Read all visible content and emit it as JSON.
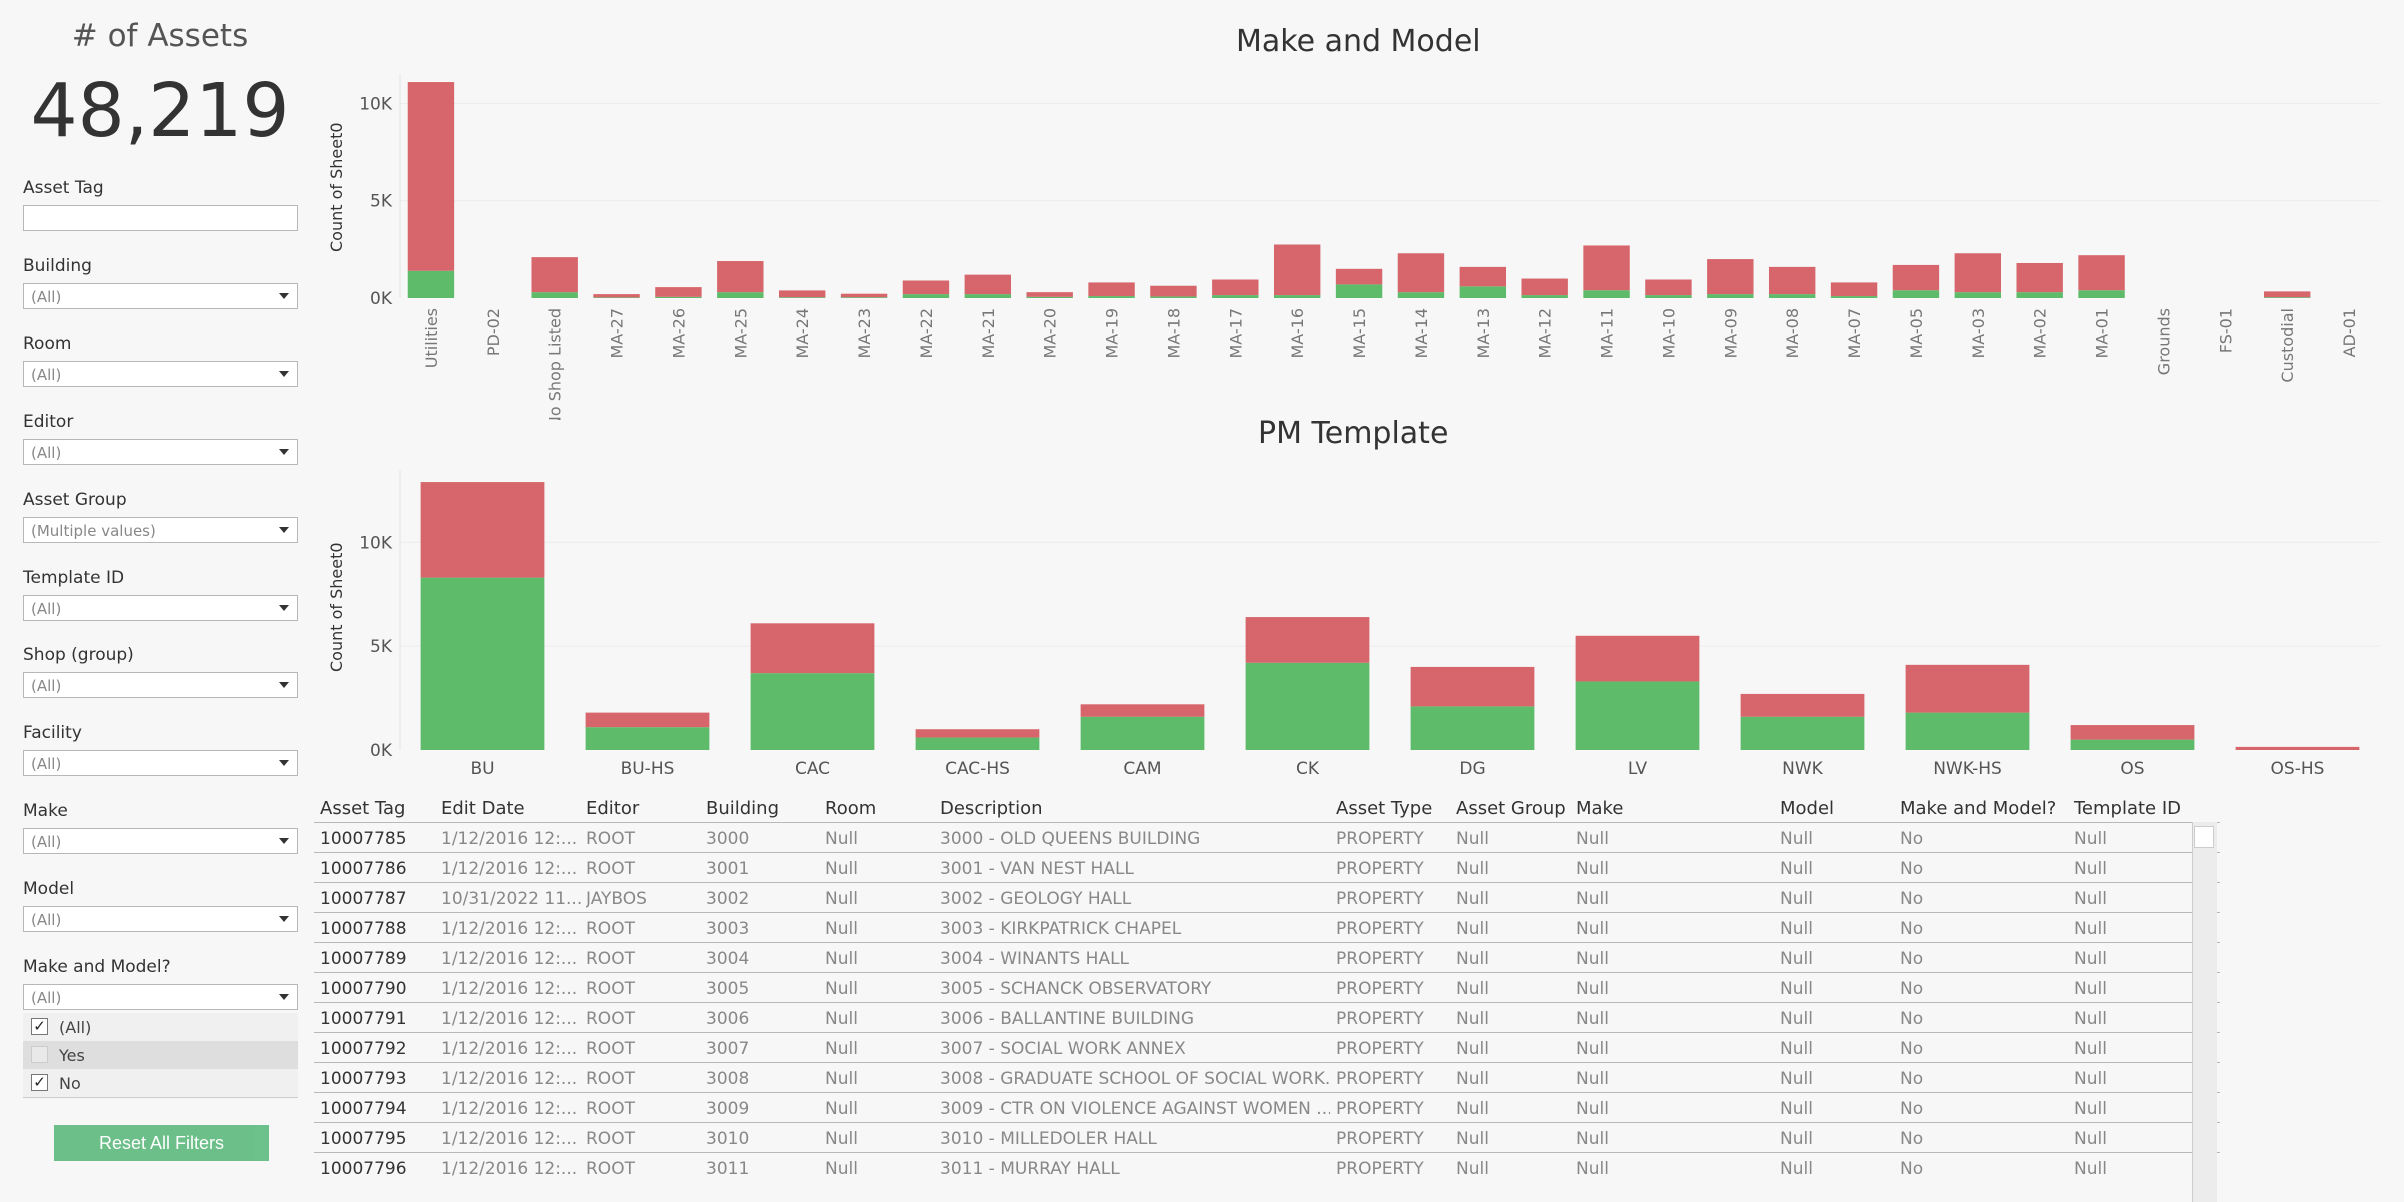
{
  "kpi": {
    "title": "# of Assets",
    "value": "48,219"
  },
  "filters": {
    "asset_tag": {
      "label": "Asset Tag",
      "value": ""
    },
    "building": {
      "label": "Building",
      "value": "(All)"
    },
    "room": {
      "label": "Room",
      "value": "(All)"
    },
    "editor": {
      "label": "Editor",
      "value": "(All)"
    },
    "asset_group": {
      "label": "Asset Group",
      "value": "(Multiple values)"
    },
    "template_id": {
      "label": "Template ID",
      "value": "(All)"
    },
    "shop_group": {
      "label": "Shop (group)",
      "value": "(All)"
    },
    "facility": {
      "label": "Facility",
      "value": "(All)"
    },
    "make": {
      "label": "Make",
      "value": "(All)"
    },
    "model": {
      "label": "Model",
      "value": "(All)"
    },
    "make_and_model": {
      "label": "Make and Model?",
      "value": "(All)",
      "options": [
        {
          "label": "(All)",
          "checked": true
        },
        {
          "label": "Yes",
          "checked": false
        },
        {
          "label": "No",
          "checked": true
        }
      ]
    }
  },
  "reset_label": "Reset All Filters",
  "colors": {
    "no": "#d6666b",
    "yes": "#5dbb6a"
  },
  "chart_data": [
    {
      "type": "bar",
      "title": "Make and Model",
      "ylabel": "Count of Sheet0",
      "ylim": [
        0,
        11000
      ],
      "yticks": [
        {
          "v": 0,
          "label": "0K"
        },
        {
          "v": 5000,
          "label": "5K"
        },
        {
          "v": 10000,
          "label": "10K"
        }
      ],
      "categories": [
        "Utilities",
        "PD-02",
        "No Shop Listed",
        "MA-27",
        "MA-26",
        "MA-25",
        "MA-24",
        "MA-23",
        "MA-22",
        "MA-21",
        "MA-20",
        "MA-19",
        "MA-18",
        "MA-17",
        "MA-16",
        "MA-15",
        "MA-14",
        "MA-13",
        "MA-12",
        "MA-11",
        "MA-10",
        "MA-09",
        "MA-08",
        "MA-07",
        "MA-05",
        "MA-03",
        "MA-02",
        "MA-01",
        "Grounds",
        "FS-01",
        "Custodial",
        "AD-01"
      ],
      "series": [
        {
          "name": "Yes",
          "values": [
            1400,
            0,
            300,
            30,
            60,
            300,
            40,
            40,
            200,
            200,
            60,
            100,
            80,
            150,
            150,
            700,
            300,
            600,
            150,
            400,
            150,
            200,
            200,
            100,
            400,
            300,
            300,
            400,
            0,
            0,
            40,
            0
          ]
        },
        {
          "name": "No",
          "values": [
            9700,
            0,
            1800,
            170,
            500,
            1600,
            350,
            180,
            700,
            1000,
            240,
            700,
            550,
            800,
            2600,
            800,
            2000,
            1000,
            850,
            2300,
            800,
            1800,
            1400,
            700,
            1300,
            2000,
            1500,
            1800,
            0,
            0,
            300,
            0
          ]
        }
      ]
    },
    {
      "type": "bar",
      "title": "PM Template",
      "ylabel": "Count of Sheet0",
      "ylim": [
        0,
        13000
      ],
      "yticks": [
        {
          "v": 0,
          "label": "0K"
        },
        {
          "v": 5000,
          "label": "5K"
        },
        {
          "v": 10000,
          "label": "10K"
        }
      ],
      "categories": [
        "BU",
        "BU-HS",
        "CAC",
        "CAC-HS",
        "CAM",
        "CK",
        "DG",
        "LV",
        "NWK",
        "NWK-HS",
        "OS",
        "OS-HS"
      ],
      "series": [
        {
          "name": "Yes",
          "values": [
            8300,
            1100,
            3700,
            600,
            1600,
            4200,
            2100,
            3300,
            1600,
            1800,
            500,
            0
          ]
        },
        {
          "name": "No",
          "values": [
            4600,
            700,
            2400,
            400,
            600,
            2200,
            1900,
            2200,
            1100,
            2300,
            700,
            150
          ]
        }
      ]
    }
  ],
  "table": {
    "columns": [
      "Asset Tag",
      "Edit Date",
      "Editor",
      "Building",
      "Room",
      "Description",
      "Asset Type",
      "Asset Group",
      "Make",
      "Model",
      "Make and Model?",
      "Template ID"
    ],
    "rows": [
      [
        "10007785",
        "1/12/2016 12:...",
        "ROOT",
        "3000",
        "Null",
        "3000 - OLD QUEENS BUILDING",
        "PROPERTY",
        "Null",
        "Null",
        "Null",
        "No",
        "Null"
      ],
      [
        "10007786",
        "1/12/2016 12:...",
        "ROOT",
        "3001",
        "Null",
        "3001 - VAN NEST HALL",
        "PROPERTY",
        "Null",
        "Null",
        "Null",
        "No",
        "Null"
      ],
      [
        "10007787",
        "10/31/2022 11...",
        "JAYBOS",
        "3002",
        "Null",
        "3002 - GEOLOGY HALL",
        "PROPERTY",
        "Null",
        "Null",
        "Null",
        "No",
        "Null"
      ],
      [
        "10007788",
        "1/12/2016 12:...",
        "ROOT",
        "3003",
        "Null",
        "3003 - KIRKPATRICK CHAPEL",
        "PROPERTY",
        "Null",
        "Null",
        "Null",
        "No",
        "Null"
      ],
      [
        "10007789",
        "1/12/2016 12:...",
        "ROOT",
        "3004",
        "Null",
        "3004 - WINANTS HALL",
        "PROPERTY",
        "Null",
        "Null",
        "Null",
        "No",
        "Null"
      ],
      [
        "10007790",
        "1/12/2016 12:...",
        "ROOT",
        "3005",
        "Null",
        "3005 - SCHANCK OBSERVATORY",
        "PROPERTY",
        "Null",
        "Null",
        "Null",
        "No",
        "Null"
      ],
      [
        "10007791",
        "1/12/2016 12:...",
        "ROOT",
        "3006",
        "Null",
        "3006 - BALLANTINE BUILDING",
        "PROPERTY",
        "Null",
        "Null",
        "Null",
        "No",
        "Null"
      ],
      [
        "10007792",
        "1/12/2016 12:...",
        "ROOT",
        "3007",
        "Null",
        "3007 - SOCIAL WORK ANNEX",
        "PROPERTY",
        "Null",
        "Null",
        "Null",
        "No",
        "Null"
      ],
      [
        "10007793",
        "1/12/2016 12:...",
        "ROOT",
        "3008",
        "Null",
        "3008 - GRADUATE SCHOOL OF SOCIAL WORK...",
        "PROPERTY",
        "Null",
        "Null",
        "Null",
        "No",
        "Null"
      ],
      [
        "10007794",
        "1/12/2016 12:...",
        "ROOT",
        "3009",
        "Null",
        "3009 - CTR ON VIOLENCE AGAINST WOMEN ...",
        "PROPERTY",
        "Null",
        "Null",
        "Null",
        "No",
        "Null"
      ],
      [
        "10007795",
        "1/12/2016 12:...",
        "ROOT",
        "3010",
        "Null",
        "3010 - MILLEDOLER HALL",
        "PROPERTY",
        "Null",
        "Null",
        "Null",
        "No",
        "Null"
      ],
      [
        "10007796",
        "1/12/2016 12:...",
        "ROOT",
        "3011",
        "Null",
        "3011 - MURRAY HALL",
        "PROPERTY",
        "Null",
        "Null",
        "Null",
        "No",
        "Null"
      ]
    ]
  }
}
